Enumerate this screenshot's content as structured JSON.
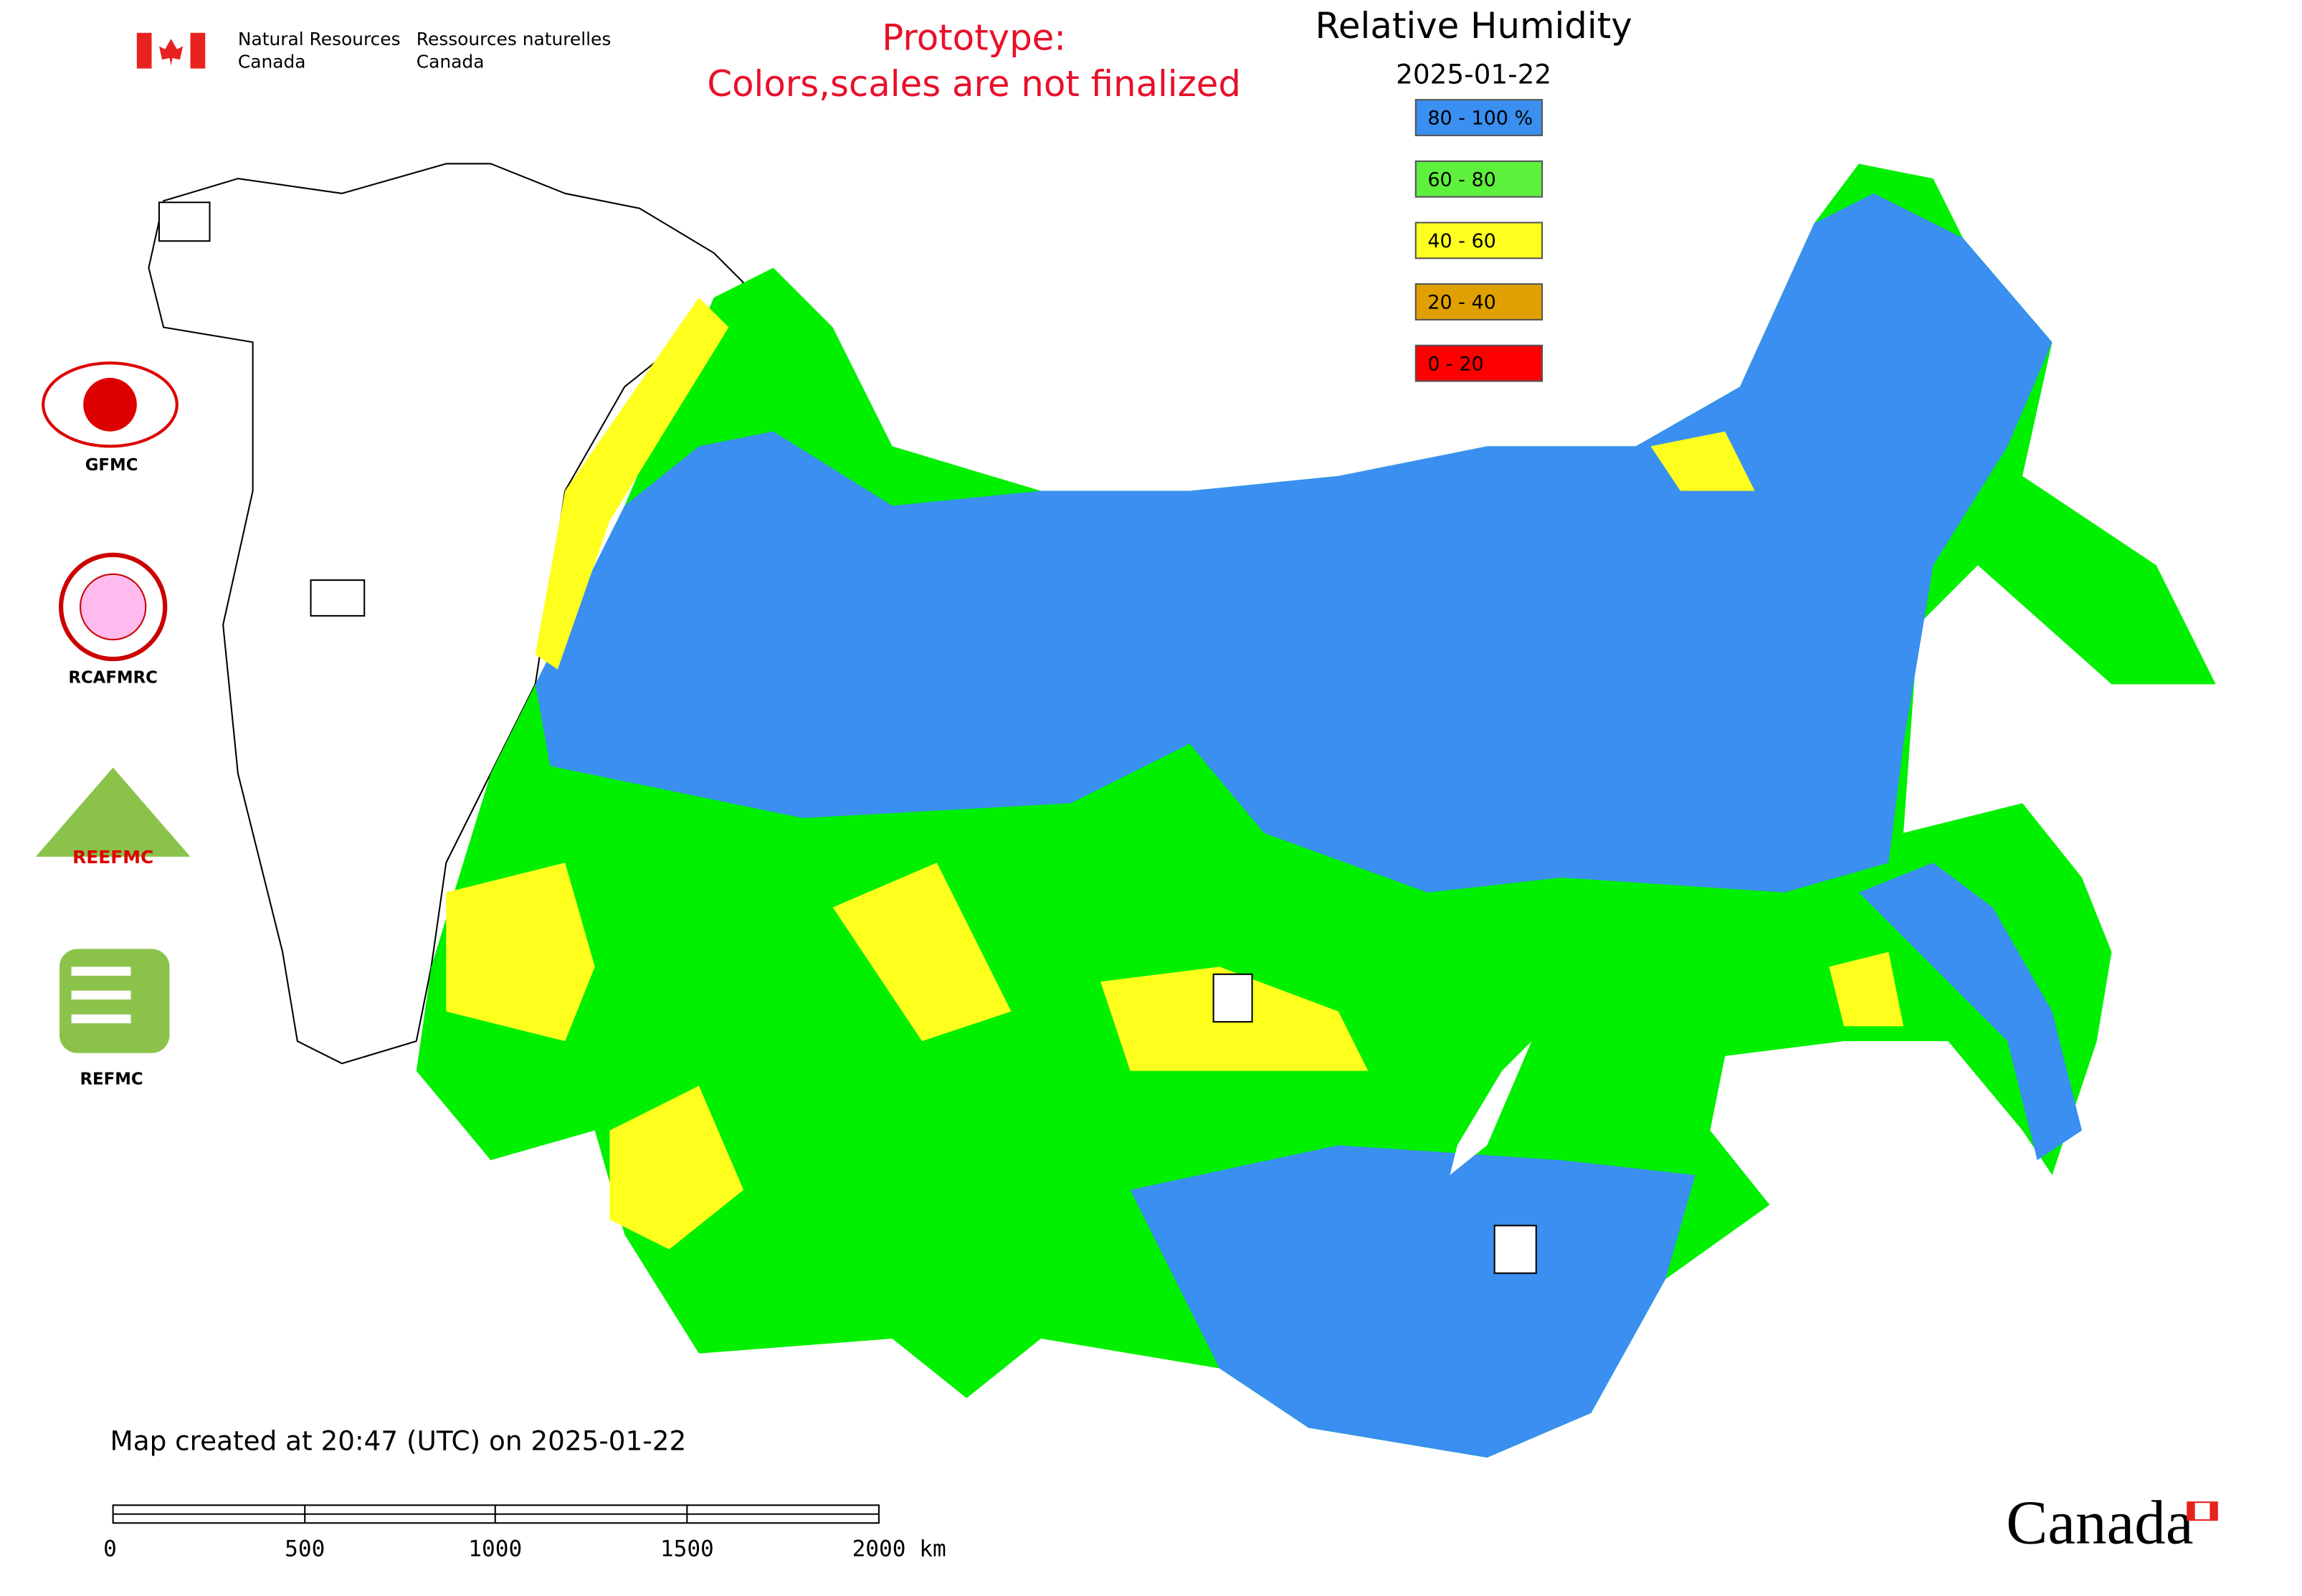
{
  "header": {
    "agency_en": [
      "Natural Resources",
      "Canada"
    ],
    "agency_fr": [
      "Ressources naturelles",
      "Canada"
    ],
    "notice": [
      "Prototype:",
      "Colors,scales are not finalized"
    ]
  },
  "legend": {
    "title": "Relative Humidity",
    "date": "2025-01-22",
    "items": [
      {
        "label": "80 - 100 %",
        "color": "#3a8ff0"
      },
      {
        "label": "60 - 80",
        "color": "#5df03c"
      },
      {
        "label": "40 - 60",
        "color": "#ffff1e"
      },
      {
        "label": "20 - 40",
        "color": "#e0a000"
      },
      {
        "label": "0 - 20",
        "color": "#ff0000"
      }
    ]
  },
  "logos": [
    "GFMC",
    "RCAFMRC",
    "REEFMC",
    "REFMC"
  ],
  "footer": {
    "created": "Map created at 20:47 (UTC) on 2025-01-22",
    "scale_labels": [
      "0",
      "500",
      "1000",
      "1500",
      "2000 km"
    ],
    "wordmark": "Canada"
  }
}
